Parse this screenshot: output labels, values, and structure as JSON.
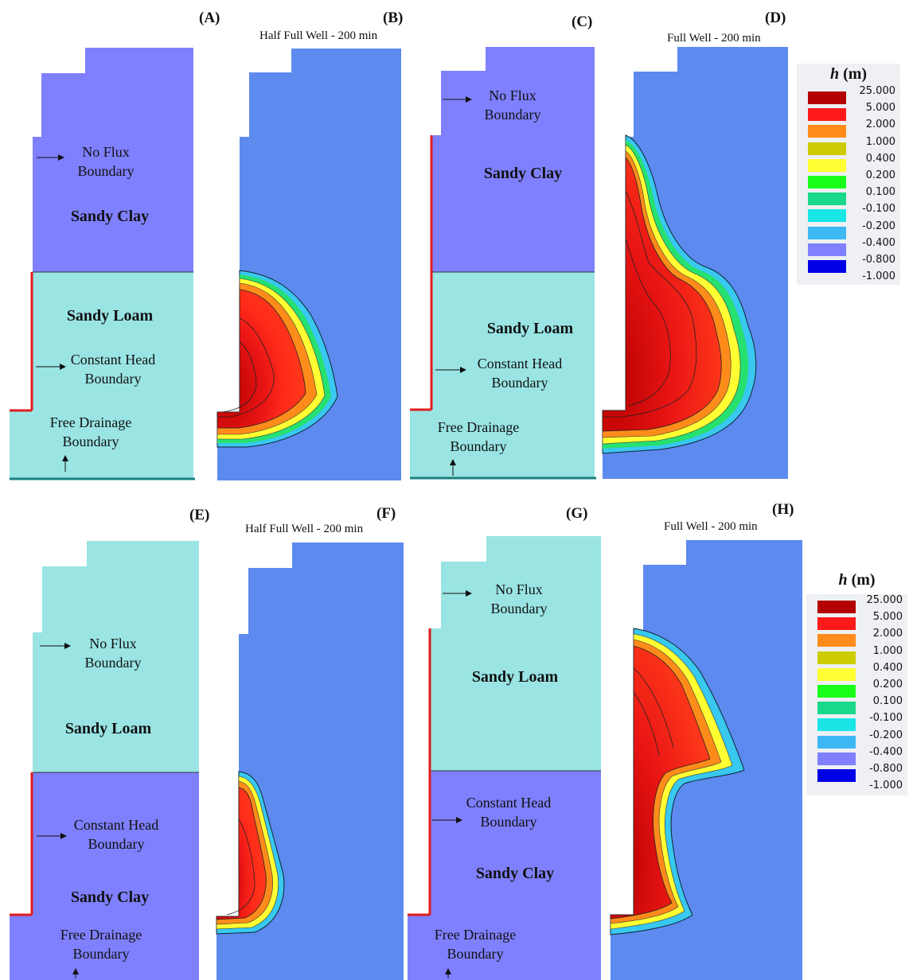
{
  "panel_labels": {
    "A": "(A)",
    "B": "(B)",
    "C": "(C)",
    "D": "(D)",
    "E": "(E)",
    "F": "(F)",
    "G": "(G)",
    "H": "(H)"
  },
  "titles": {
    "B": "Half Full Well - 200 min",
    "D": "Full Well - 200 min",
    "F": "Half Full Well - 200 min",
    "H": "Full Well - 200 min"
  },
  "panels": {
    "A": {
      "upper_soil": "Sandy Clay",
      "lower_soil": "Sandy Loam",
      "no_flux": [
        "No Flux",
        "Boundary"
      ],
      "constant_head": [
        "Constant Head",
        "Boundary"
      ],
      "free_drainage": [
        "Free Drainage",
        "Boundary"
      ]
    },
    "C": {
      "upper_soil": "Sandy Clay",
      "lower_soil": "Sandy Loam",
      "no_flux": [
        "No Flux",
        "Boundary"
      ],
      "constant_head": [
        "Constant Head",
        "Boundary"
      ],
      "free_drainage": [
        "Free Drainage",
        "Boundary"
      ]
    },
    "E": {
      "upper_soil": "Sandy Loam",
      "lower_soil": "Sandy Clay",
      "no_flux": [
        "No Flux",
        "Boundary"
      ],
      "constant_head": [
        "Constant Head",
        "Boundary"
      ],
      "free_drainage": [
        "Free Drainage",
        "Boundary"
      ]
    },
    "G": {
      "upper_soil": "Sandy Loam",
      "lower_soil": "Sandy Clay",
      "no_flux": [
        "No Flux",
        "Boundary"
      ],
      "constant_head": [
        "Constant Head",
        "Boundary"
      ],
      "free_drainage": [
        "Free Drainage",
        "Boundary"
      ]
    }
  },
  "legend": {
    "title_var": "h",
    "title_unit": " (m)",
    "entries": [
      {
        "value": "25.000",
        "color": "#b30000"
      },
      {
        "value": "5.000",
        "color": "#ff1a1a"
      },
      {
        "value": "2.000",
        "color": "#ff8c1a"
      },
      {
        "value": "1.000",
        "color": "#cccc00"
      },
      {
        "value": "0.400",
        "color": "#ffff33"
      },
      {
        "value": "0.200",
        "color": "#1aff1a"
      },
      {
        "value": "0.100",
        "color": "#1ad98c"
      },
      {
        "value": "-0.100",
        "color": "#1ae6e6"
      },
      {
        "value": "-0.200",
        "color": "#3db8f5"
      },
      {
        "value": "-0.400",
        "color": "#8080ff"
      },
      {
        "value": "-0.800",
        "color": "#0000e6"
      }
    ],
    "last_value": "-1.000"
  },
  "colors": {
    "sandy_clay": "#7f80fe",
    "sandy_loam": "#9ae4e4",
    "sim_background": "#5d8aef",
    "plume_core": "#d81010",
    "boundary_red": "#e01c1c",
    "boundary_green": "#1a8080"
  }
}
